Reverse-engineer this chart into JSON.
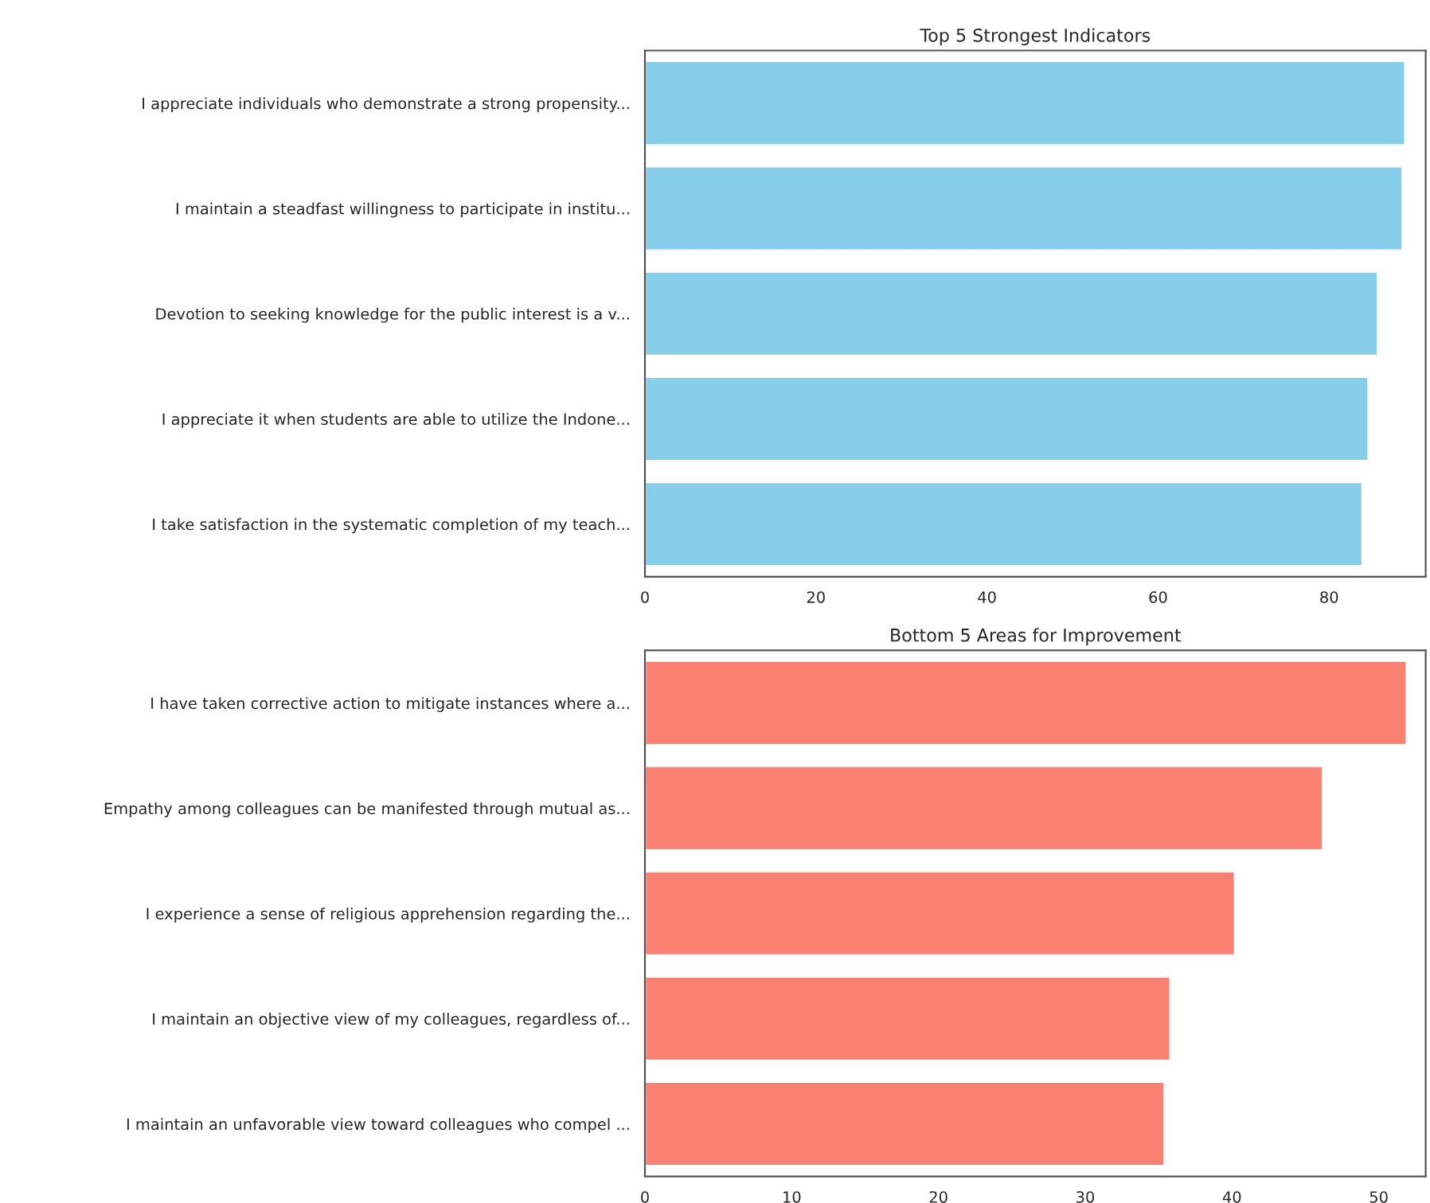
{
  "chart_data": [
    {
      "type": "bar",
      "orientation": "horizontal",
      "title": "Top 5 Strongest Indicators",
      "categories": [
        "I appreciate individuals who demonstrate a strong propensity...",
        "I maintain a steadfast willingness to participate in institu...",
        "Devotion to seeking knowledge for the public interest is a v...",
        "I appreciate it when students are able to utilize the Indone...",
        "I take satisfaction in the systematic completion of my teach..."
      ],
      "values": [
        88.9,
        88.6,
        85.7,
        84.6,
        83.9
      ],
      "color": "#87ceeb",
      "xlim": [
        0,
        91.3
      ],
      "xticks": [
        0,
        20,
        40,
        60,
        80
      ],
      "grid": false,
      "legend": false
    },
    {
      "type": "bar",
      "orientation": "horizontal",
      "title": "Bottom 5 Areas for Improvement",
      "categories": [
        "I have taken corrective action to mitigate instances where a...",
        "Empathy among colleagues can be manifested through mutual as...",
        "I experience a sense of religious apprehension regarding the...",
        "I maintain an objective view of my colleagues, regardless of...",
        "I maintain an unfavorable view toward colleagues who compel ..."
      ],
      "values": [
        51.9,
        46.2,
        40.2,
        35.8,
        35.4
      ],
      "color": "#fa8072",
      "xlim": [
        0,
        53.2
      ],
      "xticks": [
        0,
        10,
        20,
        30,
        40,
        50
      ],
      "grid": false,
      "legend": false
    }
  ]
}
